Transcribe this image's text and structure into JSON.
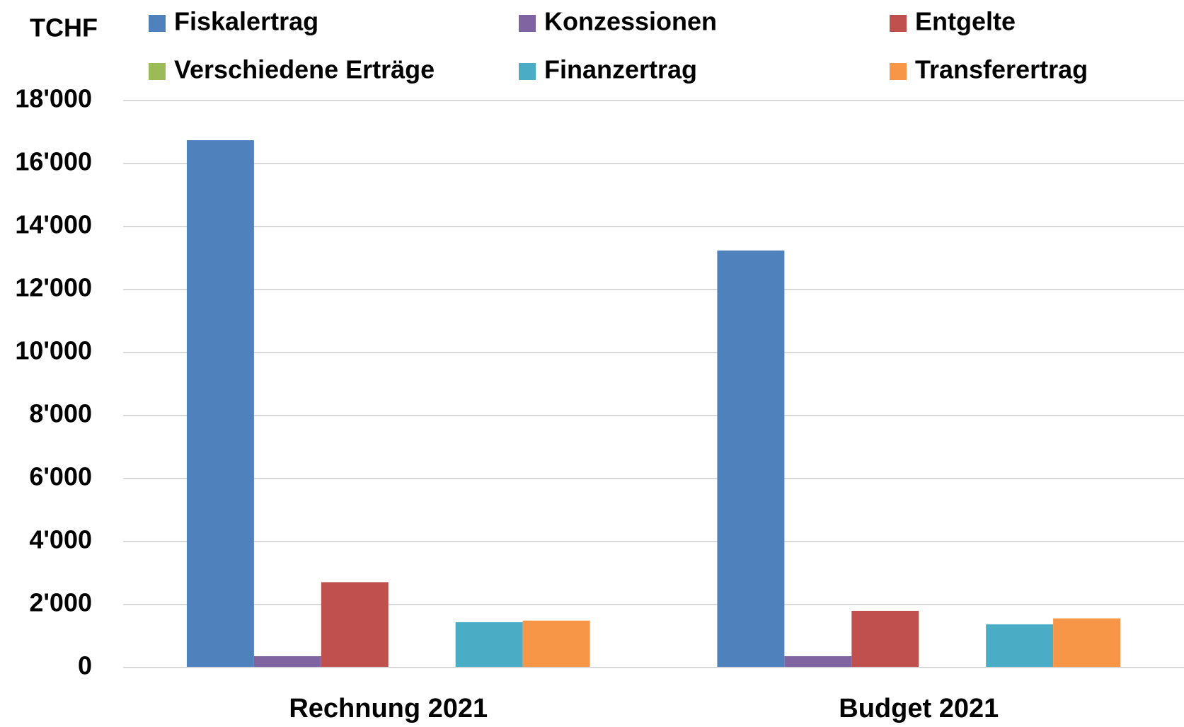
{
  "chart_data": {
    "type": "bar",
    "y_label": "TCHF",
    "categories": [
      "Rechnung 2021",
      "Budget 2021"
    ],
    "series": [
      {
        "name": "Fiskalertrag",
        "color": "#4f81bd",
        "values": [
          16740,
          13240
        ]
      },
      {
        "name": "Konzessionen",
        "color": "#8064a2",
        "values": [
          360,
          360
        ]
      },
      {
        "name": "Entgelte",
        "color": "#c0504d",
        "values": [
          2710,
          1800
        ]
      },
      {
        "name": "Verschiedene Erträge",
        "color": "#9bbb59",
        "values": [
          0,
          0
        ]
      },
      {
        "name": "Finanzertrag",
        "color": "#4bacc6",
        "values": [
          1440,
          1370
        ]
      },
      {
        "name": "Transferertrag",
        "color": "#f79646",
        "values": [
          1490,
          1560
        ]
      }
    ],
    "ylim": [
      0,
      18000
    ],
    "yticks": [
      0,
      {
        "value": 2000,
        "label": "2'000"
      },
      {
        "value": 4000,
        "label": "4'000"
      },
      {
        "value": 6000,
        "label": "6'000"
      },
      {
        "value": 8000,
        "label": "8'000"
      },
      {
        "value": 10000,
        "label": "10'000"
      },
      {
        "value": 12000,
        "label": "12'000"
      },
      {
        "value": 14000,
        "label": "14'000"
      },
      {
        "value": 16000,
        "label": "16'000"
      },
      {
        "value": 18000,
        "label": "18'000"
      }
    ],
    "grid": true,
    "legend": "top"
  }
}
